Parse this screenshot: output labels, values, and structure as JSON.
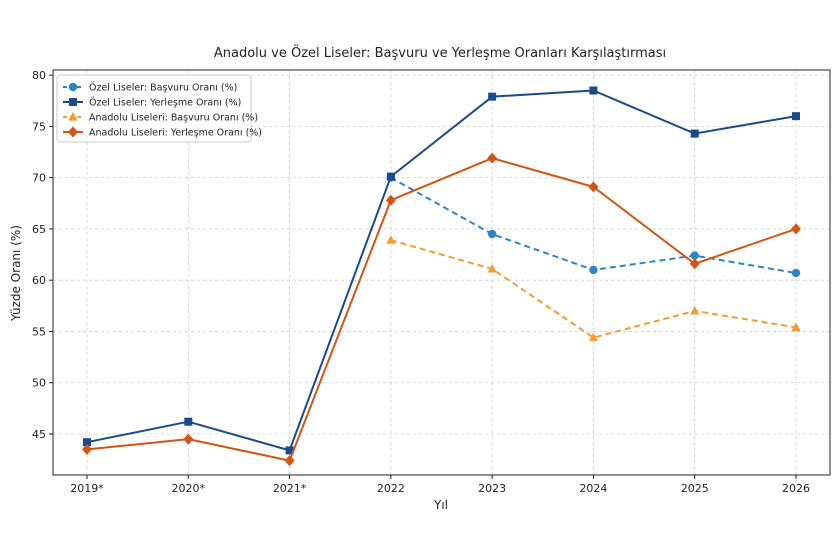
{
  "chart_data": {
    "type": "line",
    "title": "Anadolu ve Özel Liseler: Başvuru ve Yerleşme Oranları Karşılaştırması",
    "xlabel": "Yıl",
    "ylabel": "Yüzde Oranı (%)",
    "categories": [
      "2019*",
      "2020*",
      "2021*",
      "2022",
      "2023",
      "2024",
      "2025",
      "2026"
    ],
    "ylim": [
      41,
      80.5
    ],
    "yticks": [
      45,
      50,
      55,
      60,
      65,
      70,
      75,
      80
    ],
    "grid": true,
    "legend_position": "top-left",
    "series": [
      {
        "name": "Özel Liseler: Başvuru Oranı (%)",
        "color": "#2e86c1",
        "line_style": "dashed",
        "marker": "circle",
        "values": [
          null,
          null,
          null,
          70.0,
          64.5,
          61.0,
          62.4,
          60.7
        ]
      },
      {
        "name": "Özel Liseler: Yerleşme Oranı (%)",
        "color": "#1a4a8a",
        "line_style": "solid",
        "marker": "square",
        "values": [
          44.2,
          46.2,
          43.4,
          70.1,
          77.9,
          78.5,
          74.3,
          76.0
        ]
      },
      {
        "name": "Anadolu Liseleri: Başvuru Oranı (%)",
        "color": "#f39c33",
        "line_style": "dashed",
        "marker": "triangle",
        "values": [
          null,
          null,
          null,
          63.9,
          61.1,
          54.4,
          57.0,
          55.4
        ]
      },
      {
        "name": "Anadolu Liseleri: Yerleşme Oranı (%)",
        "color": "#d35414",
        "line_style": "solid",
        "marker": "diamond",
        "values": [
          43.5,
          44.5,
          42.4,
          67.8,
          71.9,
          69.1,
          61.6,
          65.0
        ]
      }
    ]
  }
}
